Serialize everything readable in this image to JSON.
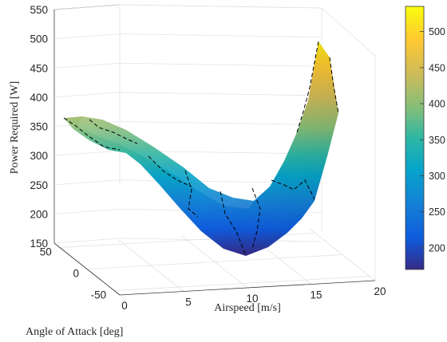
{
  "chart_data": {
    "type": "surface",
    "title": "",
    "xlabel": "Airspeed [m/s]",
    "ylabel": "Angle of Attack [deg]",
    "zlabel": "Power Required [W]",
    "x_ticks": [
      0,
      5,
      10,
      15,
      20
    ],
    "y_ticks": [
      -50,
      0,
      50
    ],
    "z_ticks": [
      150,
      200,
      250,
      300,
      350,
      400,
      450,
      500,
      550
    ],
    "xlim": [
      0,
      20
    ],
    "ylim": [
      -60,
      60
    ],
    "zlim": [
      150,
      550
    ],
    "grid": true,
    "colormap": "parula",
    "colorbar": {
      "ticks": [
        200,
        250,
        300,
        350,
        400,
        450,
        500
      ],
      "range": [
        170,
        535
      ],
      "placement": "right"
    },
    "contour_style": "black dashed",
    "surface_curves": [
      {
        "name": "front-edge",
        "points": [
          [
            2,
            20,
            370
          ],
          [
            5,
            10,
            320
          ],
          [
            7,
            0,
            250
          ],
          [
            10,
            -10,
            175
          ],
          [
            13,
            -2,
            200
          ],
          [
            15,
            10,
            300
          ],
          [
            17,
            25,
            380
          ],
          [
            18,
            35,
            530
          ]
        ]
      },
      {
        "name": "back-edge",
        "points": [
          [
            2,
            50,
            360
          ],
          [
            6,
            45,
            310
          ],
          [
            10,
            40,
            245
          ],
          [
            13,
            38,
            230
          ],
          [
            16,
            36,
            245
          ],
          [
            18,
            40,
            385
          ]
        ]
      }
    ],
    "approx_values": {
      "min_power": 175,
      "max_power": 530,
      "left_plateau_power": 365
    }
  },
  "colors": {
    "colormap_stops": [
      "#352a87",
      "#0f5cdd",
      "#1481d6",
      "#06a4ca",
      "#2eb7a4",
      "#87bf77",
      "#d1bb59",
      "#fec832",
      "#f9fb0e"
    ],
    "dash_line": "#000000",
    "grid": "#e3e3e3"
  }
}
